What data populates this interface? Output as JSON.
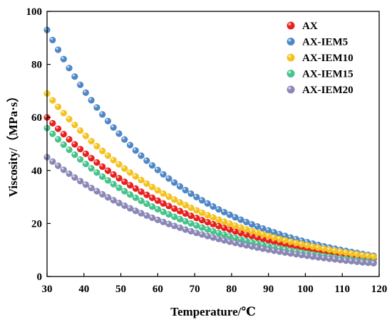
{
  "chart_data": {
    "type": "scatter",
    "xlabel": "Temperature/℃",
    "ylabel": "Viscosity/（MPa·s）",
    "xlim": [
      30,
      120
    ],
    "ylim": [
      0,
      100
    ],
    "x_ticks": [
      30,
      40,
      50,
      60,
      70,
      80,
      90,
      100,
      110,
      120
    ],
    "y_ticks": [
      0,
      20,
      40,
      60,
      80,
      100
    ],
    "grid": false,
    "legend_position": "top-right",
    "x_start": 30,
    "x_end": 119,
    "x_step": 1.5,
    "series": [
      {
        "name": "AX",
        "color": "#e8201e",
        "y_at_30": 60,
        "y_at_120": 6.5
      },
      {
        "name": "AX-IEM5",
        "color": "#4e87c6",
        "y_at_30": 93,
        "y_at_120": 7.5
      },
      {
        "name": "AX-IEM10",
        "color": "#f4c21e",
        "y_at_30": 69,
        "y_at_120": 7.2
      },
      {
        "name": "AX-IEM15",
        "color": "#46c38a",
        "y_at_30": 56,
        "y_at_120": 5.2
      },
      {
        "name": "AX-IEM20",
        "color": "#8a86b6",
        "y_at_30": 45,
        "y_at_120": 4.8
      }
    ]
  }
}
